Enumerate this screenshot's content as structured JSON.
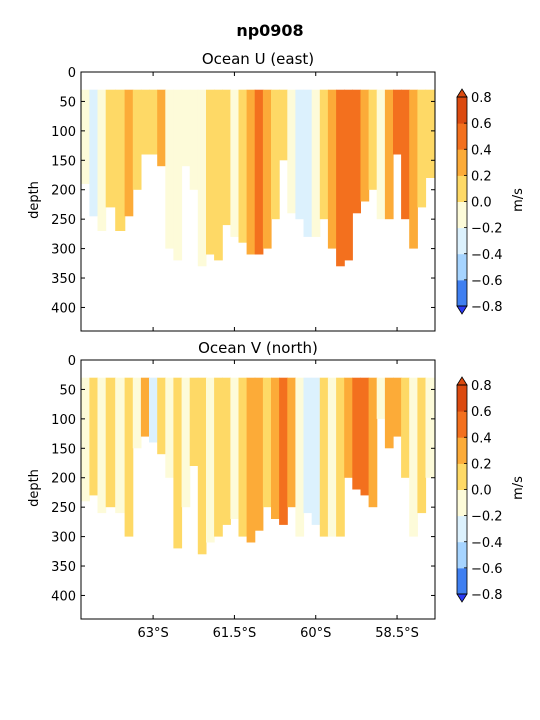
{
  "figure": {
    "title": "np0908"
  },
  "chart_data": [
    {
      "type": "heatmap",
      "title": "Ocean U (east)",
      "ylabel": "depth",
      "y_ticks": [
        "0",
        "50",
        "100",
        "150",
        "200",
        "250",
        "300",
        "350",
        "400"
      ],
      "y_tick_values": [
        0,
        50,
        100,
        150,
        200,
        250,
        300,
        350,
        400
      ],
      "ylim": [
        440,
        0
      ],
      "y_inverted": true,
      "x_ticks": [
        "63°S",
        "61.5°S",
        "60°S",
        "58.5°S"
      ],
      "x_tick_values": [
        -63,
        -61.5,
        -60,
        -58.5
      ],
      "xlim": [
        -64.33,
        -57.8
      ],
      "colorbar": {
        "label": "m/s",
        "ticks": [
          "0.8",
          "0.6",
          "0.4",
          "0.2",
          "0.0",
          "−0.2",
          "−0.4",
          "−0.6",
          "−0.8"
        ],
        "levels": [
          -0.8,
          -0.6,
          -0.4,
          -0.2,
          0.0,
          0.2,
          0.4,
          0.6,
          0.8
        ],
        "colors": [
          "#2b3bf5",
          "#3f7ff0",
          "#a6d4ff",
          "#dcf1fd",
          "#fdfbd9",
          "#fed966",
          "#fcab38",
          "#f3701e",
          "#db4a10"
        ]
      },
      "bands": [
        {
          "lat": -64.25,
          "bottom": 190,
          "value": -0.1
        },
        {
          "lat": -64.1,
          "bottom": 245,
          "value": -0.25
        },
        {
          "lat": -63.95,
          "bottom": 270,
          "value": -0.1
        },
        {
          "lat": -63.8,
          "bottom": 230,
          "value": 0.05
        },
        {
          "lat": -63.6,
          "bottom": 270,
          "value": 0.05
        },
        {
          "lat": -63.45,
          "bottom": 245,
          "value": 0.3
        },
        {
          "lat": -63.3,
          "bottom": 200,
          "value": 0.1
        },
        {
          "lat": -63.15,
          "bottom": 140,
          "value": 0.15
        },
        {
          "lat": -63.0,
          "bottom": 140,
          "value": 0.1
        },
        {
          "lat": -62.85,
          "bottom": 160,
          "value": 0.3
        },
        {
          "lat": -62.7,
          "bottom": 300,
          "value": -0.1
        },
        {
          "lat": -62.55,
          "bottom": 320,
          "value": -0.05
        },
        {
          "lat": -62.4,
          "bottom": 160,
          "value": -0.1
        },
        {
          "lat": -62.25,
          "bottom": 200,
          "value": -0.1
        },
        {
          "lat": -62.1,
          "bottom": 330,
          "value": -0.05
        },
        {
          "lat": -61.95,
          "bottom": 310,
          "value": 0.05
        },
        {
          "lat": -61.8,
          "bottom": 320,
          "value": 0.1
        },
        {
          "lat": -61.65,
          "bottom": 260,
          "value": 0.05
        },
        {
          "lat": -61.5,
          "bottom": 280,
          "value": -0.05
        },
        {
          "lat": -61.35,
          "bottom": 290,
          "value": 0.1
        },
        {
          "lat": -61.2,
          "bottom": 310,
          "value": 0.3
        },
        {
          "lat": -61.05,
          "bottom": 310,
          "value": 0.5
        },
        {
          "lat": -60.9,
          "bottom": 300,
          "value": 0.3
        },
        {
          "lat": -60.75,
          "bottom": 250,
          "value": 0.05
        },
        {
          "lat": -60.6,
          "bottom": 150,
          "value": 0.05
        },
        {
          "lat": -60.45,
          "bottom": 240,
          "value": -0.1
        },
        {
          "lat": -60.3,
          "bottom": 250,
          "value": -0.3
        },
        {
          "lat": -60.15,
          "bottom": 280,
          "value": -0.25
        },
        {
          "lat": -60.0,
          "bottom": 280,
          "value": -0.1
        },
        {
          "lat": -59.85,
          "bottom": 250,
          "value": 0.1
        },
        {
          "lat": -59.7,
          "bottom": 300,
          "value": 0.2
        },
        {
          "lat": -59.55,
          "bottom": 330,
          "value": 0.45
        },
        {
          "lat": -59.4,
          "bottom": 320,
          "value": 0.55
        },
        {
          "lat": -59.25,
          "bottom": 240,
          "value": 0.5
        },
        {
          "lat": -59.1,
          "bottom": 220,
          "value": 0.3
        },
        {
          "lat": -58.95,
          "bottom": 200,
          "value": 0.1
        },
        {
          "lat": -58.8,
          "bottom": 250,
          "value": -0.05
        },
        {
          "lat": -58.65,
          "bottom": 250,
          "value": 0.3
        },
        {
          "lat": -58.5,
          "bottom": 140,
          "value": 0.5
        },
        {
          "lat": -58.35,
          "bottom": 250,
          "value": 0.55
        },
        {
          "lat": -58.2,
          "bottom": 300,
          "value": 0.3
        },
        {
          "lat": -58.05,
          "bottom": 230,
          "value": 0.1
        },
        {
          "lat": -57.9,
          "bottom": 180,
          "value": 0.05
        }
      ]
    },
    {
      "type": "heatmap",
      "title": "Ocean V (north)",
      "ylabel": "depth",
      "y_ticks": [
        "0",
        "50",
        "100",
        "150",
        "200",
        "250",
        "300",
        "350",
        "400"
      ],
      "y_tick_values": [
        0,
        50,
        100,
        150,
        200,
        250,
        300,
        350,
        400
      ],
      "ylim": [
        440,
        0
      ],
      "y_inverted": true,
      "x_ticks": [
        "63°S",
        "61.5°S",
        "60°S",
        "58.5°S"
      ],
      "x_tick_values": [
        -63,
        -61.5,
        -60,
        -58.5
      ],
      "xlim": [
        -64.33,
        -57.8
      ],
      "colorbar": {
        "label": "m/s",
        "ticks": [
          "0.8",
          "0.6",
          "0.4",
          "0.2",
          "0.0",
          "−0.2",
          "−0.4",
          "−0.6",
          "−0.8"
        ],
        "levels": [
          -0.8,
          -0.6,
          -0.4,
          -0.2,
          0.0,
          0.2,
          0.4,
          0.6,
          0.8
        ],
        "colors": [
          "#2b3bf5",
          "#3f7ff0",
          "#a6d4ff",
          "#dcf1fd",
          "#fdfbd9",
          "#fed966",
          "#fcab38",
          "#f3701e",
          "#db4a10"
        ]
      },
      "bands": [
        {
          "lat": -64.25,
          "bottom": 240,
          "value": -0.1
        },
        {
          "lat": -64.1,
          "bottom": 230,
          "value": 0.05
        },
        {
          "lat": -63.95,
          "bottom": 260,
          "value": -0.1
        },
        {
          "lat": -63.8,
          "bottom": 250,
          "value": 0.05
        },
        {
          "lat": -63.6,
          "bottom": 260,
          "value": -0.05
        },
        {
          "lat": -63.45,
          "bottom": 300,
          "value": 0.05
        },
        {
          "lat": -63.3,
          "bottom": 150,
          "value": -0.1
        },
        {
          "lat": -63.15,
          "bottom": 130,
          "value": 0.3
        },
        {
          "lat": -63.0,
          "bottom": 140,
          "value": -0.25
        },
        {
          "lat": -62.85,
          "bottom": 160,
          "value": 0.05
        },
        {
          "lat": -62.7,
          "bottom": 200,
          "value": -0.1
        },
        {
          "lat": -62.55,
          "bottom": 320,
          "value": 0.05
        },
        {
          "lat": -62.4,
          "bottom": 250,
          "value": -0.1
        },
        {
          "lat": -62.25,
          "bottom": 180,
          "value": 0.1
        },
        {
          "lat": -62.1,
          "bottom": 330,
          "value": 0.05
        },
        {
          "lat": -61.95,
          "bottom": 310,
          "value": -0.1
        },
        {
          "lat": -61.8,
          "bottom": 300,
          "value": 0.1
        },
        {
          "lat": -61.65,
          "bottom": 280,
          "value": 0.05
        },
        {
          "lat": -61.5,
          "bottom": 270,
          "value": -0.1
        },
        {
          "lat": -61.35,
          "bottom": 300,
          "value": 0.05
        },
        {
          "lat": -61.2,
          "bottom": 310,
          "value": 0.3
        },
        {
          "lat": -61.05,
          "bottom": 290,
          "value": 0.25
        },
        {
          "lat": -60.9,
          "bottom": 250,
          "value": 0.1
        },
        {
          "lat": -60.75,
          "bottom": 270,
          "value": 0.3
        },
        {
          "lat": -60.6,
          "bottom": 280,
          "value": 0.5
        },
        {
          "lat": -60.45,
          "bottom": 250,
          "value": 0.25
        },
        {
          "lat": -60.3,
          "bottom": 300,
          "value": -0.1
        },
        {
          "lat": -60.15,
          "bottom": 260,
          "value": -0.25
        },
        {
          "lat": -60.0,
          "bottom": 280,
          "value": -0.3
        },
        {
          "lat": -59.85,
          "bottom": 300,
          "value": 0.05
        },
        {
          "lat": -59.7,
          "bottom": 300,
          "value": -0.1
        },
        {
          "lat": -59.55,
          "bottom": 300,
          "value": 0.05
        },
        {
          "lat": -59.4,
          "bottom": 200,
          "value": 0.3
        },
        {
          "lat": -59.25,
          "bottom": 220,
          "value": 0.45
        },
        {
          "lat": -59.1,
          "bottom": 230,
          "value": 0.55
        },
        {
          "lat": -58.95,
          "bottom": 250,
          "value": 0.3
        },
        {
          "lat": -58.8,
          "bottom": 100,
          "value": -0.1
        },
        {
          "lat": -58.65,
          "bottom": 150,
          "value": 0.25
        },
        {
          "lat": -58.5,
          "bottom": 130,
          "value": 0.3
        },
        {
          "lat": -58.35,
          "bottom": 200,
          "value": 0.05
        },
        {
          "lat": -58.2,
          "bottom": 300,
          "value": -0.1
        },
        {
          "lat": -58.05,
          "bottom": 260,
          "value": 0.05
        },
        {
          "lat": -57.9,
          "bottom": 200,
          "value": -0.1
        }
      ]
    }
  ]
}
